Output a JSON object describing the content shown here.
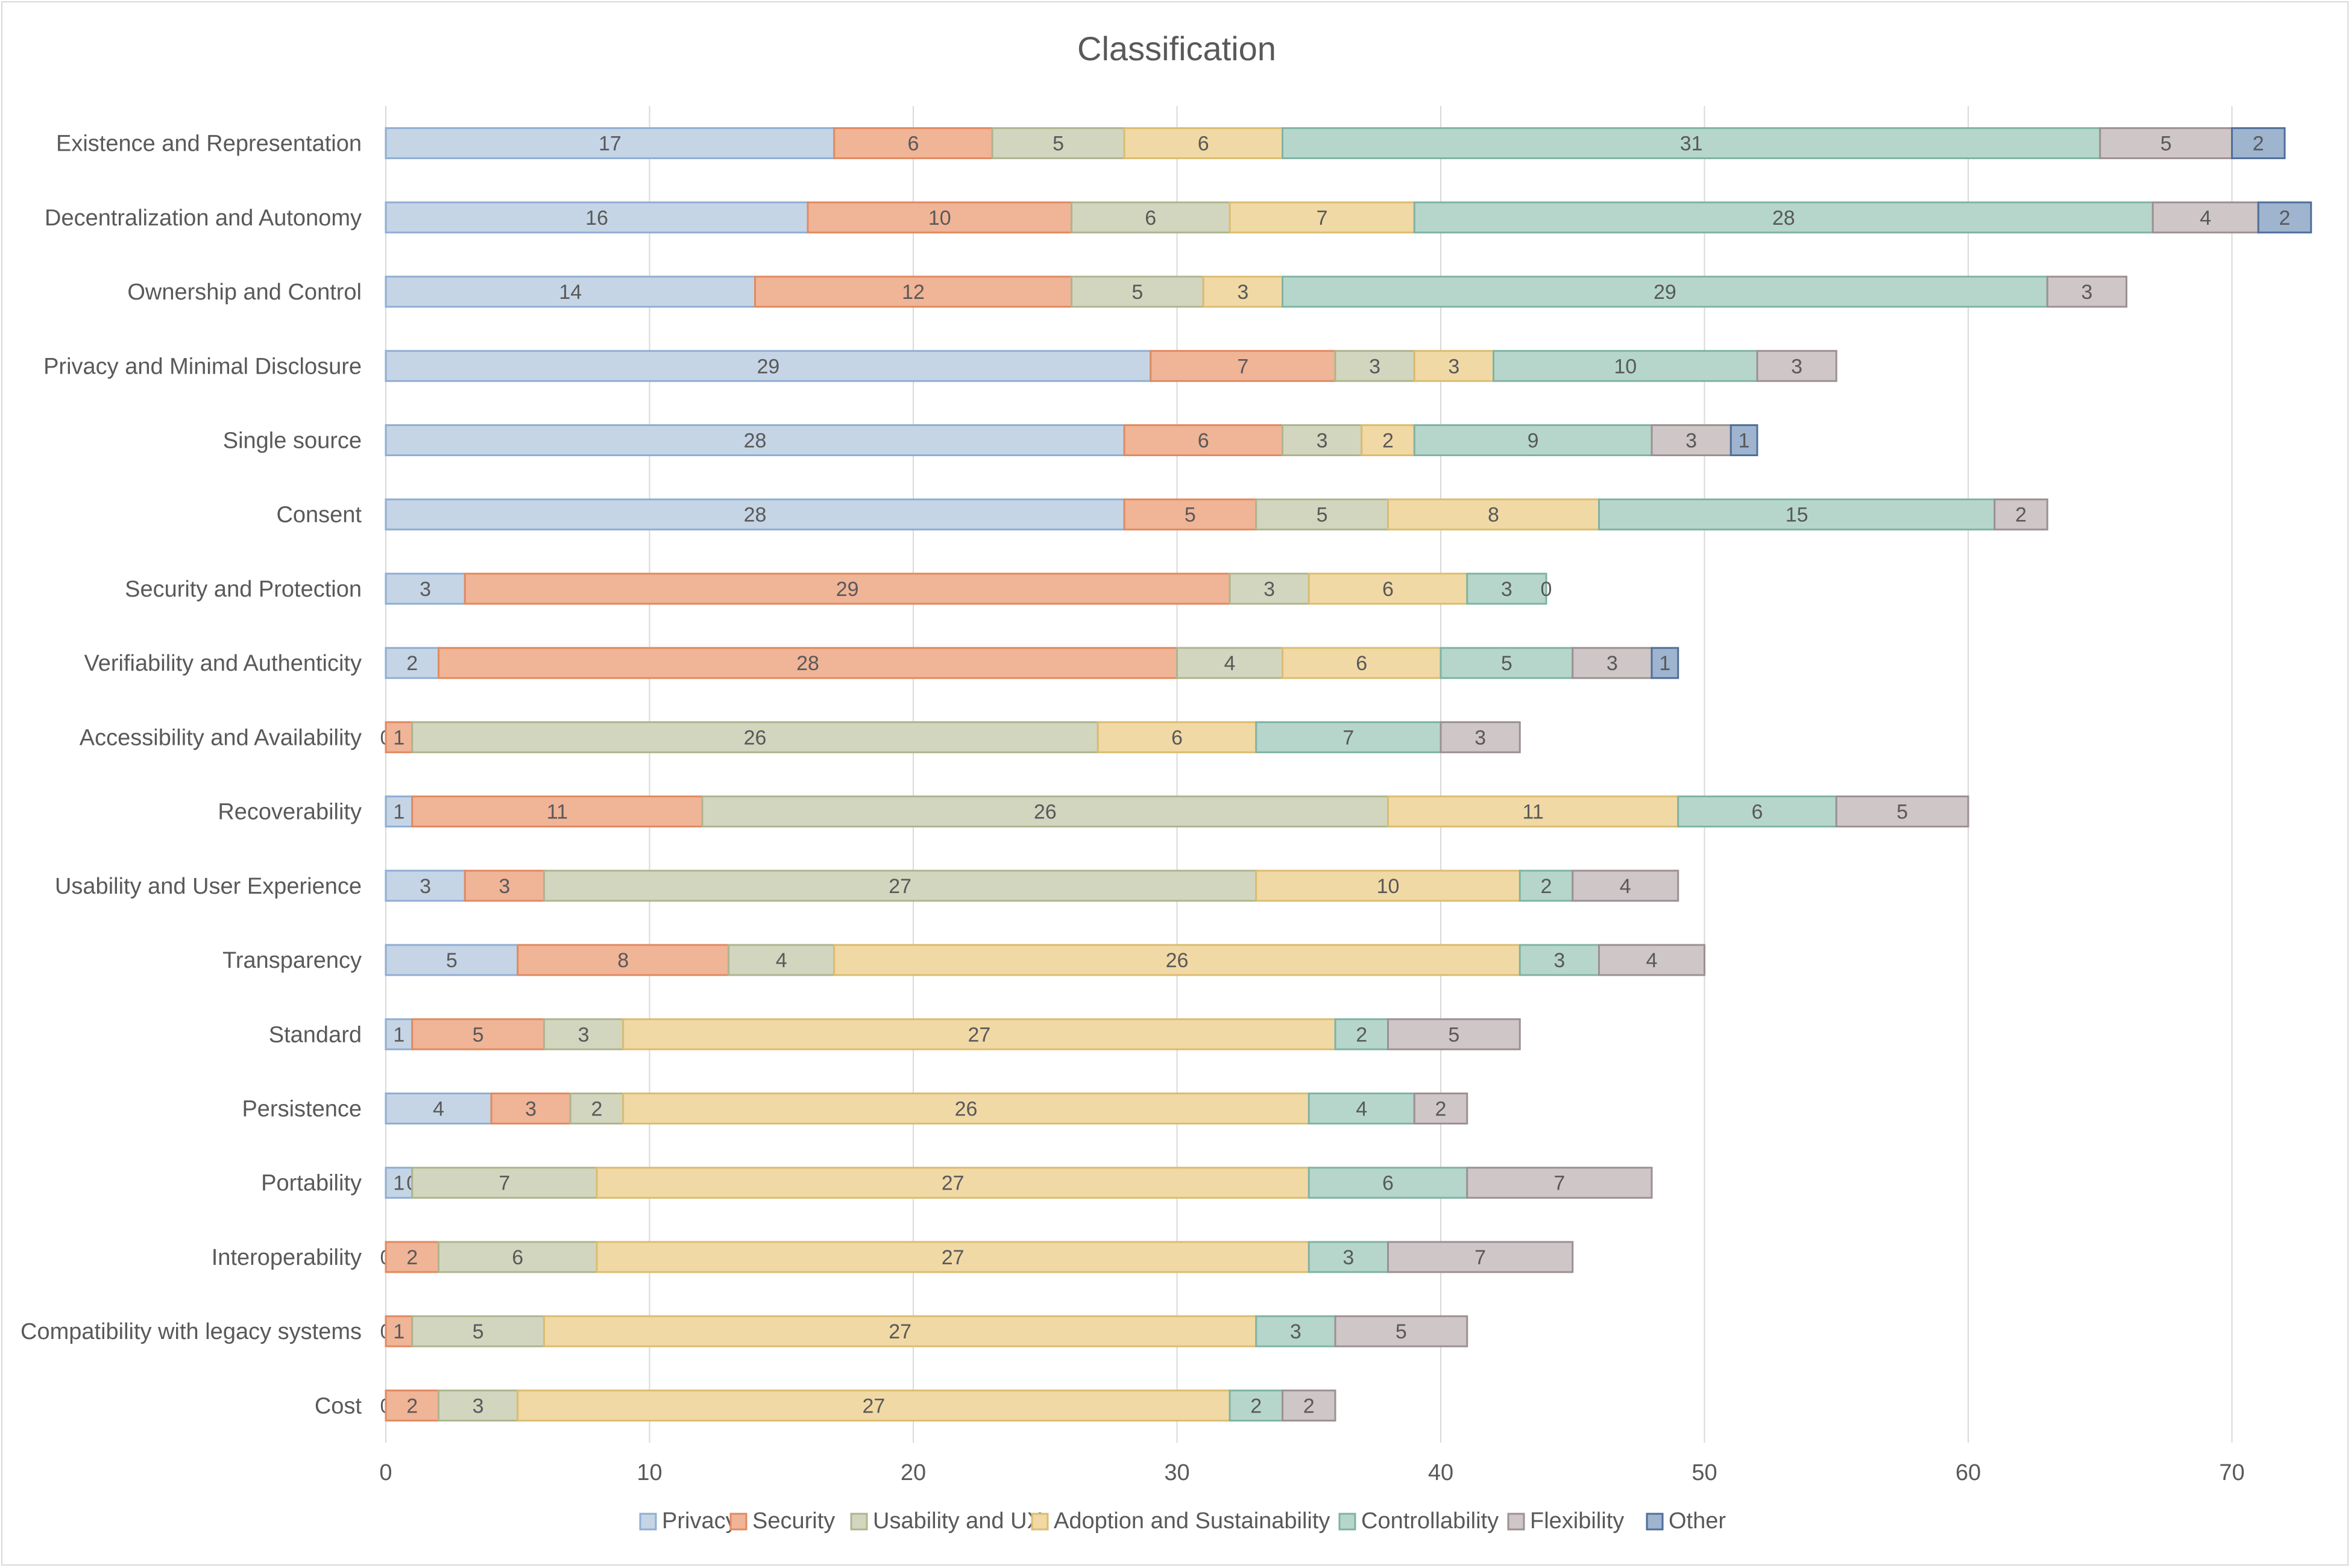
{
  "chart_data": {
    "type": "bar",
    "orientation": "horizontal",
    "stacked": true,
    "title": "Classification",
    "xlabel": "",
    "ylabel": "",
    "xlim": [
      0,
      70
    ],
    "x_ticks": [
      0,
      10,
      20,
      30,
      40,
      50,
      60,
      70
    ],
    "grid": true,
    "legend_position": "bottom",
    "categories": [
      "Existence and Representation",
      "Decentralization and Autonomy",
      "Ownership and Control",
      "Privacy and Minimal Disclosure",
      "Single source",
      "Consent",
      "Security and Protection",
      "Verifiability and Authenticity",
      "Accessibility and Availability",
      "Recoverability",
      "Usability and User Experience",
      "Transparency",
      "Standard",
      "Persistence",
      "Portability",
      "Interoperability",
      "Compatibility with legacy systems",
      "Cost"
    ],
    "series": [
      {
        "name": "Privacy",
        "color": "#c5d5e6",
        "stroke": "#8faed3",
        "values": [
          17,
          16,
          14,
          29,
          28,
          28,
          3,
          2,
          0,
          1,
          3,
          5,
          1,
          4,
          1,
          0,
          0,
          0
        ]
      },
      {
        "name": "Security",
        "color": "#f0b497",
        "stroke": "#e08a60",
        "values": [
          6,
          10,
          12,
          7,
          6,
          5,
          29,
          28,
          1,
          11,
          3,
          8,
          5,
          3,
          0,
          2,
          1,
          2
        ]
      },
      {
        "name": "Usability and UX",
        "color": "#d2d6bf",
        "stroke": "#aeb58f",
        "values": [
          5,
          6,
          5,
          3,
          3,
          5,
          3,
          4,
          26,
          26,
          27,
          4,
          3,
          2,
          7,
          6,
          5,
          3
        ]
      },
      {
        "name": "Adoption and Sustainability",
        "color": "#f1d9a6",
        "stroke": "#dcbc6f",
        "values": [
          6,
          7,
          3,
          3,
          2,
          8,
          6,
          6,
          6,
          11,
          10,
          26,
          27,
          26,
          27,
          27,
          27,
          27
        ]
      },
      {
        "name": "Controllability",
        "color": "#b6d6cc",
        "stroke": "#7fb3a3",
        "values": [
          31,
          28,
          29,
          10,
          9,
          15,
          3,
          5,
          7,
          6,
          2,
          3,
          2,
          4,
          6,
          3,
          3,
          2
        ]
      },
      {
        "name": "Flexibility",
        "color": "#cfc6c8",
        "stroke": "#9c9092",
        "values": [
          5,
          4,
          3,
          3,
          3,
          2,
          0,
          3,
          3,
          5,
          4,
          4,
          5,
          2,
          7,
          7,
          5,
          2
        ]
      },
      {
        "name": "Other",
        "color": "#9eb4cf",
        "stroke": "#4f6f99",
        "values": [
          2,
          2,
          0,
          0,
          1,
          0,
          0,
          1,
          0,
          0,
          0,
          0,
          0,
          0,
          0,
          0,
          0,
          0
        ]
      }
    ]
  }
}
